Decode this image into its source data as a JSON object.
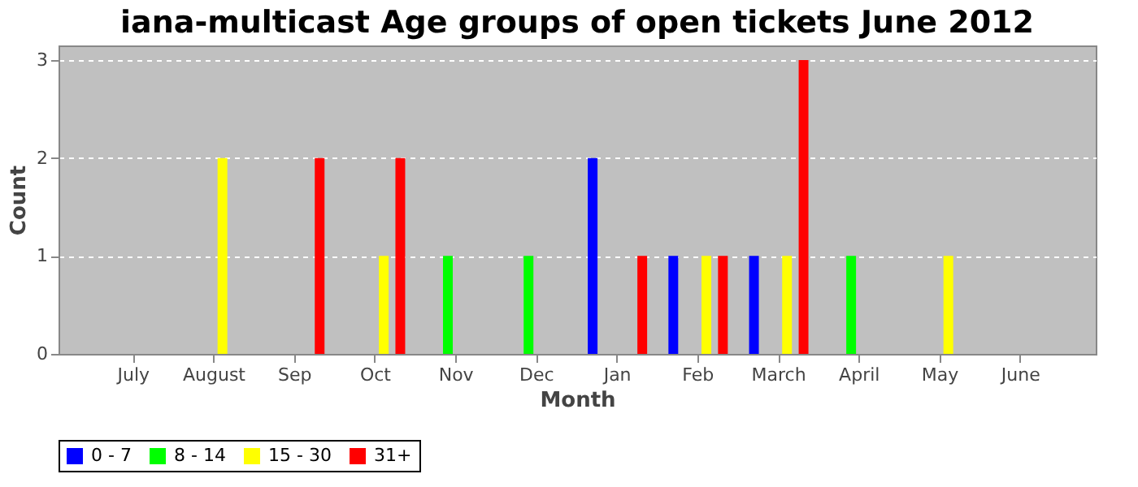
{
  "chart_data": {
    "type": "bar",
    "title": "iana-multicast Age groups of open tickets June 2012",
    "xlabel": "Month",
    "ylabel": "Count",
    "categories": [
      "July",
      "August",
      "Sep",
      "Oct",
      "Nov",
      "Dec",
      "Jan",
      "Feb",
      "March",
      "April",
      "May",
      "June"
    ],
    "series": [
      {
        "name": "0 - 7",
        "color": "#0000ff",
        "values": [
          0,
          0,
          0,
          0,
          0,
          0,
          2,
          1,
          1,
          0,
          0,
          0
        ]
      },
      {
        "name": "8 - 14",
        "color": "#00ff00",
        "values": [
          0,
          0,
          0,
          0,
          1,
          1,
          0,
          0,
          0,
          1,
          0,
          0
        ]
      },
      {
        "name": "15 - 30",
        "color": "#ffff00",
        "values": [
          0,
          2,
          0,
          1,
          0,
          0,
          0,
          1,
          1,
          0,
          1,
          0
        ]
      },
      {
        "name": "31+",
        "color": "#ff0000",
        "values": [
          0,
          0,
          2,
          2,
          0,
          0,
          1,
          1,
          3,
          0,
          0,
          0
        ]
      }
    ],
    "ylim": [
      0,
      3.15
    ],
    "yticks": [
      0,
      1,
      2,
      3
    ],
    "grid": "y",
    "legend": "bottom"
  }
}
